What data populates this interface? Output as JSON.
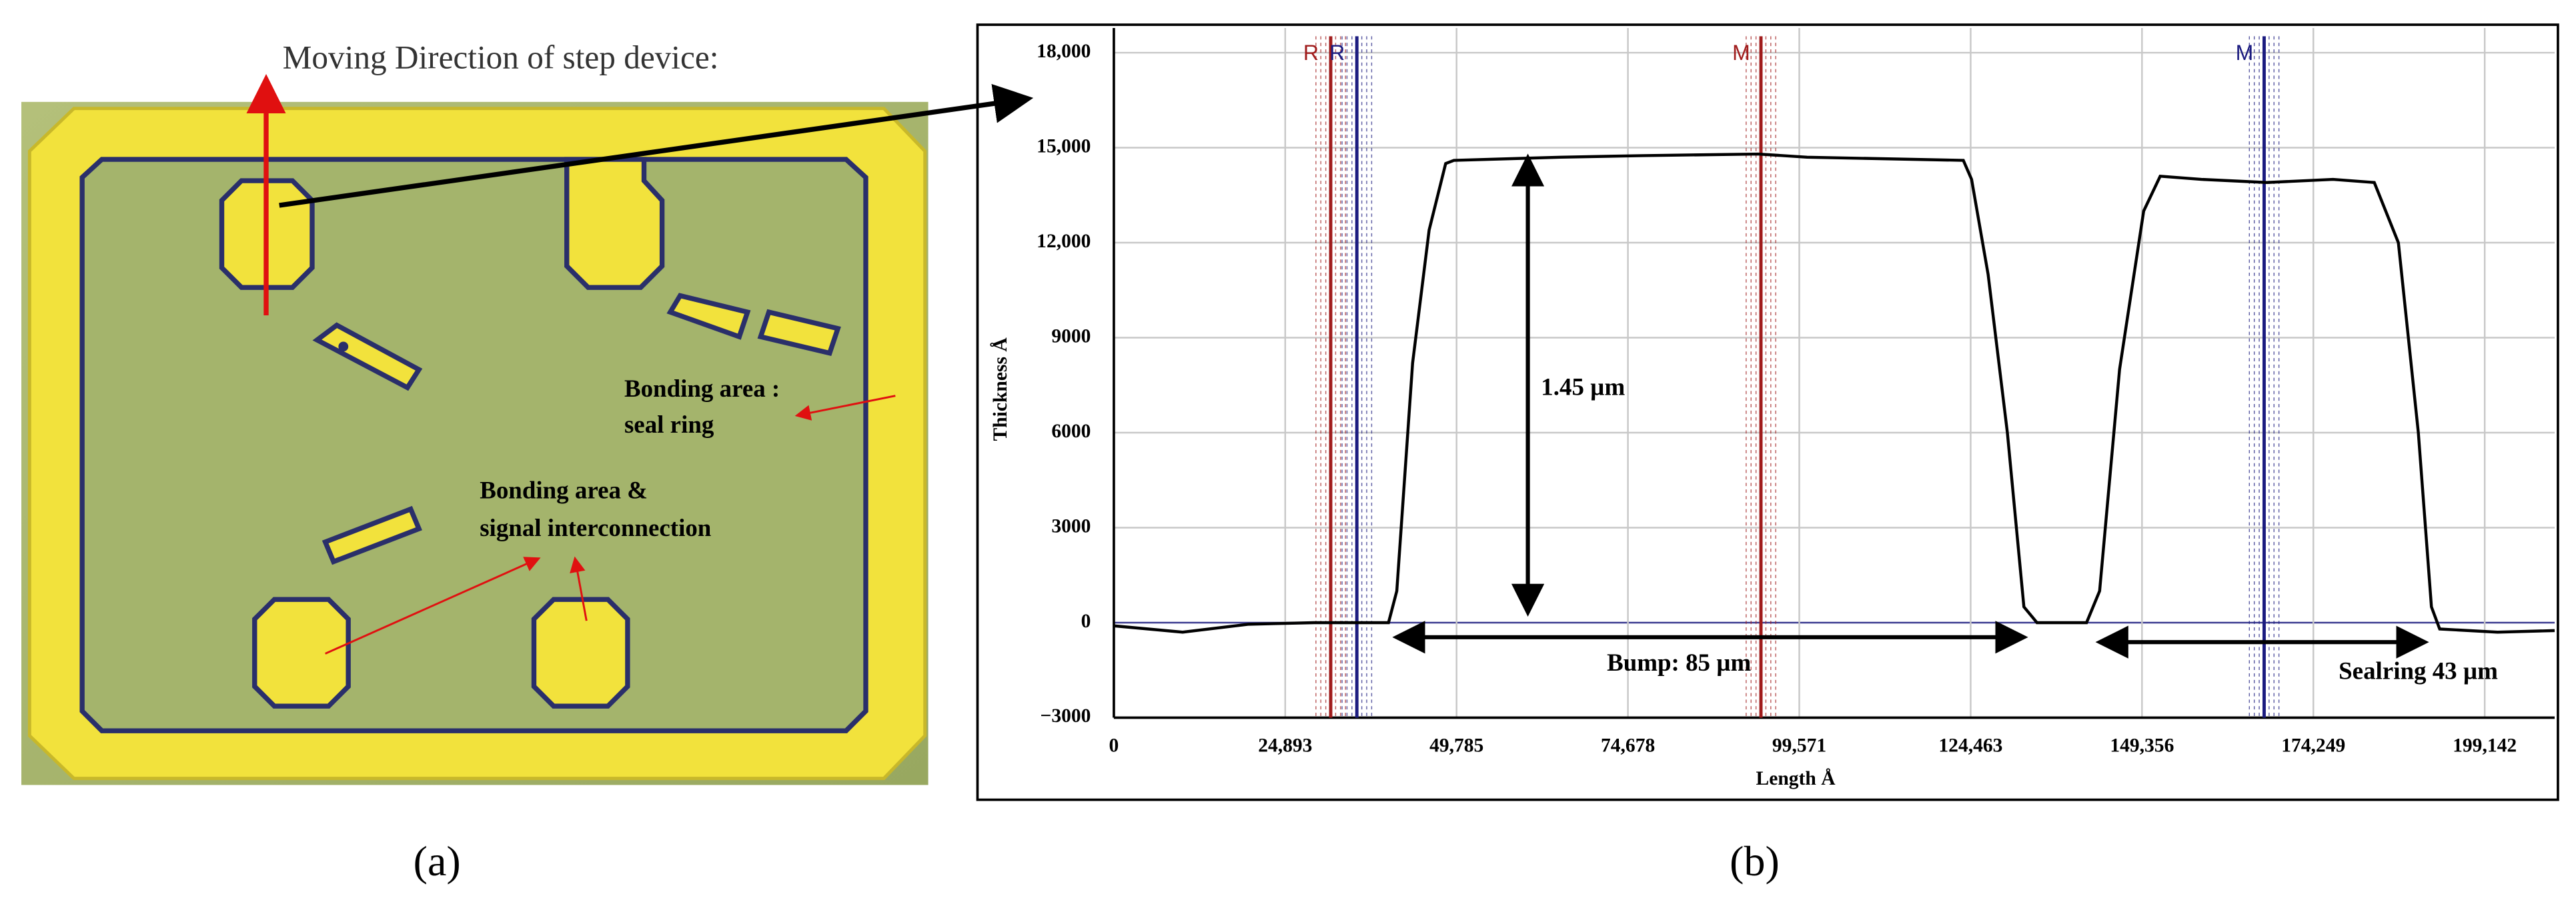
{
  "panel_a": {
    "label": "(a)",
    "arrow_caption": "Moving Direction of step device:",
    "annotations": [
      "Bonding area :",
      "seal ring",
      "Bonding area &",
      "signal interconnection"
    ]
  },
  "panel_b": {
    "label": "(b)"
  },
  "chart_data": {
    "type": "line",
    "x_label": "Length Å",
    "y_label": "Thickness Å",
    "x": [
      0,
      10000,
      19600,
      29100,
      39900,
      41100,
      43400,
      45800,
      48200,
      49400,
      64900,
      76900,
      93600,
      100700,
      123400,
      124600,
      127000,
      129800,
      132200,
      134100,
      141300,
      143200,
      146100,
      149600,
      152000,
      158000,
      167500,
      177100,
      183100,
      186600,
      189500,
      191400,
      192600,
      201000,
      209300
    ],
    "values": [
      -100,
      -300,
      -50,
      0,
      0,
      1000,
      8200,
      12400,
      14500,
      14600,
      14700,
      14750,
      14800,
      14700,
      14600,
      14000,
      11000,
      6000,
      500,
      0,
      0,
      1000,
      8000,
      13000,
      14100,
      14000,
      13900,
      14000,
      13900,
      12000,
      6000,
      500,
      -200,
      -300,
      -250
    ],
    "color": "#000000",
    "xlim": [
      0,
      209300
    ],
    "ylim": [
      -3000,
      18780
    ],
    "xticks": [
      0,
      {
        "value": 24893,
        "label": "24,893"
      },
      {
        "value": 49785,
        "label": "49,785"
      },
      {
        "value": 74678,
        "label": "74,678"
      },
      {
        "value": 99571,
        "label": "99,571"
      },
      {
        "value": 124463,
        "label": "124,463"
      },
      {
        "value": 149356,
        "label": "149,356"
      },
      {
        "value": 174249,
        "label": "174,249"
      },
      {
        "value": 199142,
        "label": "199,142"
      }
    ],
    "yticks": [
      {
        "value": -3000,
        "label": "−3000"
      },
      0,
      3000,
      6000,
      9000,
      {
        "value": 12000,
        "label": "12,000"
      },
      {
        "value": 15000,
        "label": "15,000"
      },
      {
        "value": 18000,
        "label": "18,000"
      }
    ],
    "grid": true,
    "markers": [
      {
        "label": "R",
        "x": 31500,
        "color": "#a01c1c"
      },
      {
        "label": "R",
        "x": 35300,
        "color": "#1c1c80"
      },
      {
        "label": "M",
        "x": 94000,
        "color": "#a01c1c"
      },
      {
        "label": "M",
        "x": 167100,
        "color": "#1c1c80"
      }
    ],
    "annotations": [
      "1.45 µm",
      "Bump: 85 µm",
      "Sealring 43 µm"
    ]
  }
}
